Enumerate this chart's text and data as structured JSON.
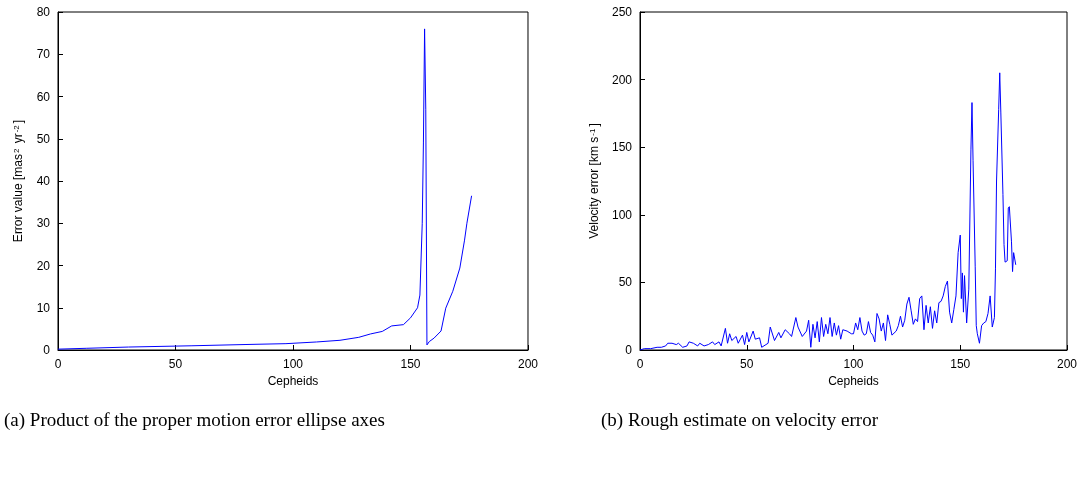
{
  "chart_data": [
    {
      "type": "line",
      "xlabel": "Cepheids",
      "ylabel": "Error value [mas$^{2}$ yr$^{-2}$]",
      "xlim": [
        0,
        200
      ],
      "xticks": [
        0,
        50,
        100,
        150,
        200
      ],
      "ylim": [
        0,
        80
      ],
      "yticks": [
        0,
        10,
        20,
        30,
        40,
        50,
        60,
        70,
        80
      ],
      "grid": false,
      "annotations": [
        "(a) Product of the proper motion error ellipse axes"
      ],
      "series": [
        {
          "color": "#0000ff",
          "x": [
            0,
            12,
            30,
            57,
            80,
            97,
            110,
            120,
            128,
            133,
            138,
            142,
            147,
            150,
            153,
            154,
            155,
            155.5,
            156,
            156.5,
            157,
            158,
            160,
            163,
            165,
            168,
            171,
            173,
            174,
            176
          ],
          "values": [
            0.2,
            0.4,
            0.7,
            1.0,
            1.3,
            1.5,
            1.9,
            2.3,
            3.0,
            3.8,
            4.4,
            5.7,
            6.0,
            7.6,
            10,
            13,
            30,
            49,
            76,
            57,
            1.2,
            2.0,
            2.8,
            4.5,
            9.9,
            13.9,
            19.4,
            26,
            30,
            36.5
          ]
        }
      ]
    },
    {
      "type": "line",
      "xlabel": "Cepheids",
      "ylabel": "Velocity error [km s$^{-1}$]",
      "xlim": [
        0,
        200
      ],
      "xticks": [
        0,
        50,
        100,
        150,
        200
      ],
      "ylim": [
        0,
        250
      ],
      "yticks": [
        0,
        50,
        100,
        150,
        200,
        250
      ],
      "grid": false,
      "annotations": [
        "(b) Rough estimate on velocity error"
      ],
      "series": [
        {
          "color": "#0000ff",
          "x": [
            0,
            2,
            5,
            8,
            10,
            12,
            13,
            15,
            17,
            18,
            20,
            22,
            23,
            25,
            27,
            28,
            30,
            32,
            34,
            35,
            37,
            38,
            40,
            41,
            42,
            43,
            45,
            46,
            48,
            49,
            50,
            51,
            53,
            54,
            56,
            57,
            59,
            60,
            61,
            63,
            65,
            66,
            68,
            70,
            71,
            73,
            74,
            76,
            78,
            79,
            80,
            81,
            82,
            83,
            84,
            85,
            86,
            87,
            88,
            89,
            90,
            91,
            92,
            93,
            94,
            95,
            97,
            99,
            100,
            101,
            102,
            103,
            104,
            105,
            106,
            107,
            108,
            109,
            110,
            111,
            112,
            113,
            114,
            115,
            116,
            117,
            118,
            120,
            121,
            122,
            123,
            124,
            125,
            126,
            127,
            128,
            129,
            130,
            131,
            132,
            133,
            134,
            135,
            136,
            137,
            138,
            139,
            140,
            141,
            142,
            143,
            144,
            145,
            146,
            147,
            148,
            149,
            150,
            150.5,
            151,
            151.5,
            152,
            153,
            154,
            155,
            155.5,
            156,
            157,
            157.5,
            158,
            159,
            160,
            161,
            162,
            163,
            164,
            165,
            166,
            166.5,
            167,
            168,
            168.5,
            169,
            170,
            170.5,
            171,
            172,
            172.5,
            173,
            174,
            174.5,
            175,
            176
          ],
          "values": [
            0,
            1,
            1,
            2,
            2,
            3,
            5,
            5,
            4,
            5,
            2,
            3,
            6,
            5,
            3,
            5,
            3,
            4,
            6,
            4,
            6,
            3,
            16,
            5,
            12,
            7,
            10,
            5,
            11,
            4,
            13,
            6,
            14,
            8,
            9,
            2,
            4,
            5,
            17,
            7,
            13,
            9,
            15,
            12,
            10,
            24,
            17,
            10,
            14,
            22,
            2,
            19,
            9,
            21,
            6,
            24,
            10,
            19,
            12,
            24,
            10,
            20,
            11,
            18,
            8,
            15,
            14,
            12,
            12,
            20,
            15,
            24,
            14,
            11,
            12,
            21,
            13,
            11,
            6,
            27,
            23,
            14,
            20,
            7,
            26,
            19,
            11,
            14,
            18,
            25,
            17,
            22,
            34,
            39,
            29,
            19,
            23,
            21,
            38,
            40,
            15,
            33,
            20,
            32,
            16,
            29,
            20,
            35,
            36,
            40,
            47,
            51,
            28,
            20,
            30,
            40,
            72,
            85,
            38,
            57,
            28,
            55,
            20,
            45,
            148,
            183,
            140,
            62,
            18,
            12,
            5,
            18,
            20,
            21,
            27,
            40,
            17,
            24,
            60,
            125,
            178,
            205,
            176,
            115,
            78,
            65,
            66,
            105,
            106,
            80,
            58,
            72,
            63
          ]
        }
      ]
    }
  ]
}
